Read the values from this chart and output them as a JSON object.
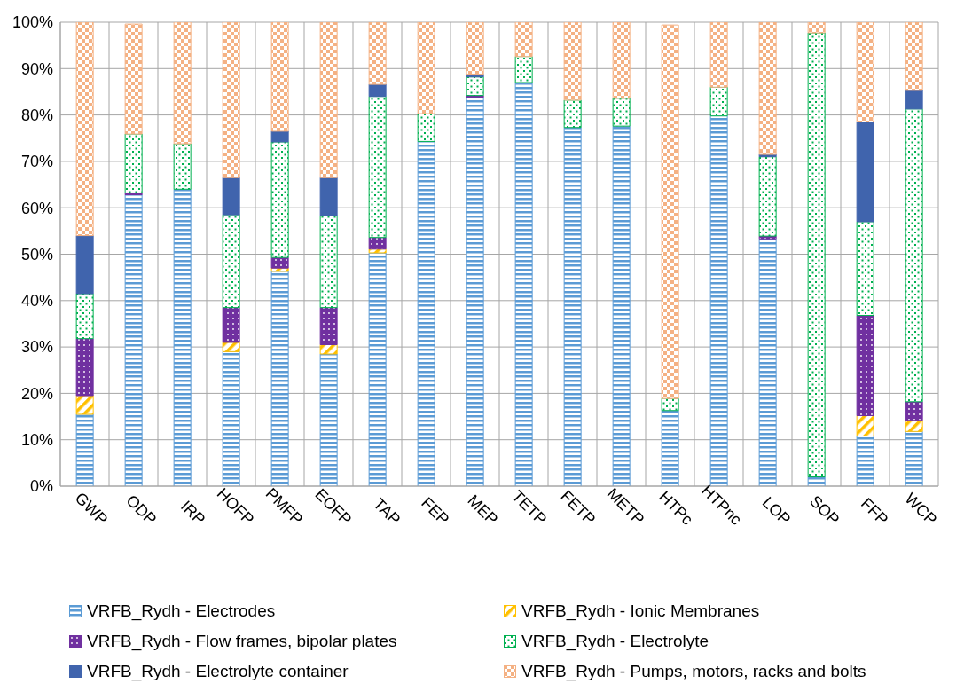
{
  "chart_data": {
    "type": "bar",
    "stacked": true,
    "categories": [
      "GWP",
      "ODP",
      "IRP",
      "HOFP",
      "PMFP",
      "EOFP",
      "TAP",
      "FEP",
      "MEP",
      "TETP",
      "FETP",
      "METP",
      "HTPc",
      "HTPnc",
      "LOP",
      "SOP",
      "FFP",
      "WCP"
    ],
    "series": [
      {
        "name": "VRFB_Rydh - Electrodes",
        "color": "#5b9bd5",
        "values": [
          15.5,
          62.8,
          64,
          29,
          46.3,
          28.5,
          50.3,
          74.3,
          83.8,
          87,
          77.3,
          77.6,
          16.3,
          79.8,
          53.3,
          2,
          10.8,
          11.8
        ]
      },
      {
        "name": "VRFB_Rydh - Ionic Membranes",
        "color": "#ffc000",
        "values": [
          4,
          null,
          0,
          2,
          0.7,
          2,
          0.8,
          0,
          0,
          0,
          0,
          0,
          0,
          0,
          0,
          0,
          4.4,
          2.4
        ]
      },
      {
        "name": "VRFB_Rydh - Flow frames, bipolar plates",
        "color": "#7030a0",
        "values": [
          12.3,
          0.4,
          0,
          7.5,
          2.3,
          8,
          2.5,
          0,
          0.4,
          0,
          0,
          0,
          null,
          0,
          0.6,
          0,
          21.6,
          4
        ]
      },
      {
        "name": "VRFB_Rydh - Electrolyte",
        "color": "#00b050",
        "values": [
          9.7,
          12.7,
          9.8,
          20,
          24.9,
          19.8,
          30.4,
          6,
          4,
          5.6,
          5.9,
          6,
          2.6,
          6.2,
          17.1,
          95.7,
          20.2,
          63.1
        ]
      },
      {
        "name": "VRFB_Rydh - Electrolyte container",
        "color": "#4064ad",
        "values": [
          12.5,
          null,
          0,
          8,
          2.3,
          8.2,
          2.6,
          0,
          0.6,
          0,
          0,
          0,
          null,
          0,
          0.5,
          0,
          21.5,
          4
        ]
      },
      {
        "name": "VRFB_Rydh - Pumps, motors, racks and bolts",
        "color": "#f4b183",
        "values": [
          46,
          23.7,
          26.2,
          33.5,
          23.5,
          33.5,
          13.4,
          19.7,
          11.2,
          7.4,
          16.8,
          16.4,
          80.5,
          14,
          28.5,
          2.3,
          21.5,
          14.7
        ]
      }
    ],
    "ylim": [
      0,
      100
    ],
    "yticks": [
      {
        "value": 0,
        "label": "0%"
      },
      {
        "value": 10,
        "label": "10%"
      },
      {
        "value": 20,
        "label": "20%"
      },
      {
        "value": 30,
        "label": "30%"
      },
      {
        "value": 40,
        "label": "40%"
      },
      {
        "value": 50,
        "label": "50%"
      },
      {
        "value": 60,
        "label": "60%"
      },
      {
        "value": 70,
        "label": "70%"
      },
      {
        "value": 80,
        "label": "80%"
      },
      {
        "value": 90,
        "label": "90%"
      },
      {
        "value": 100,
        "label": "100%"
      }
    ],
    "grid": true,
    "legend": "bottom"
  }
}
